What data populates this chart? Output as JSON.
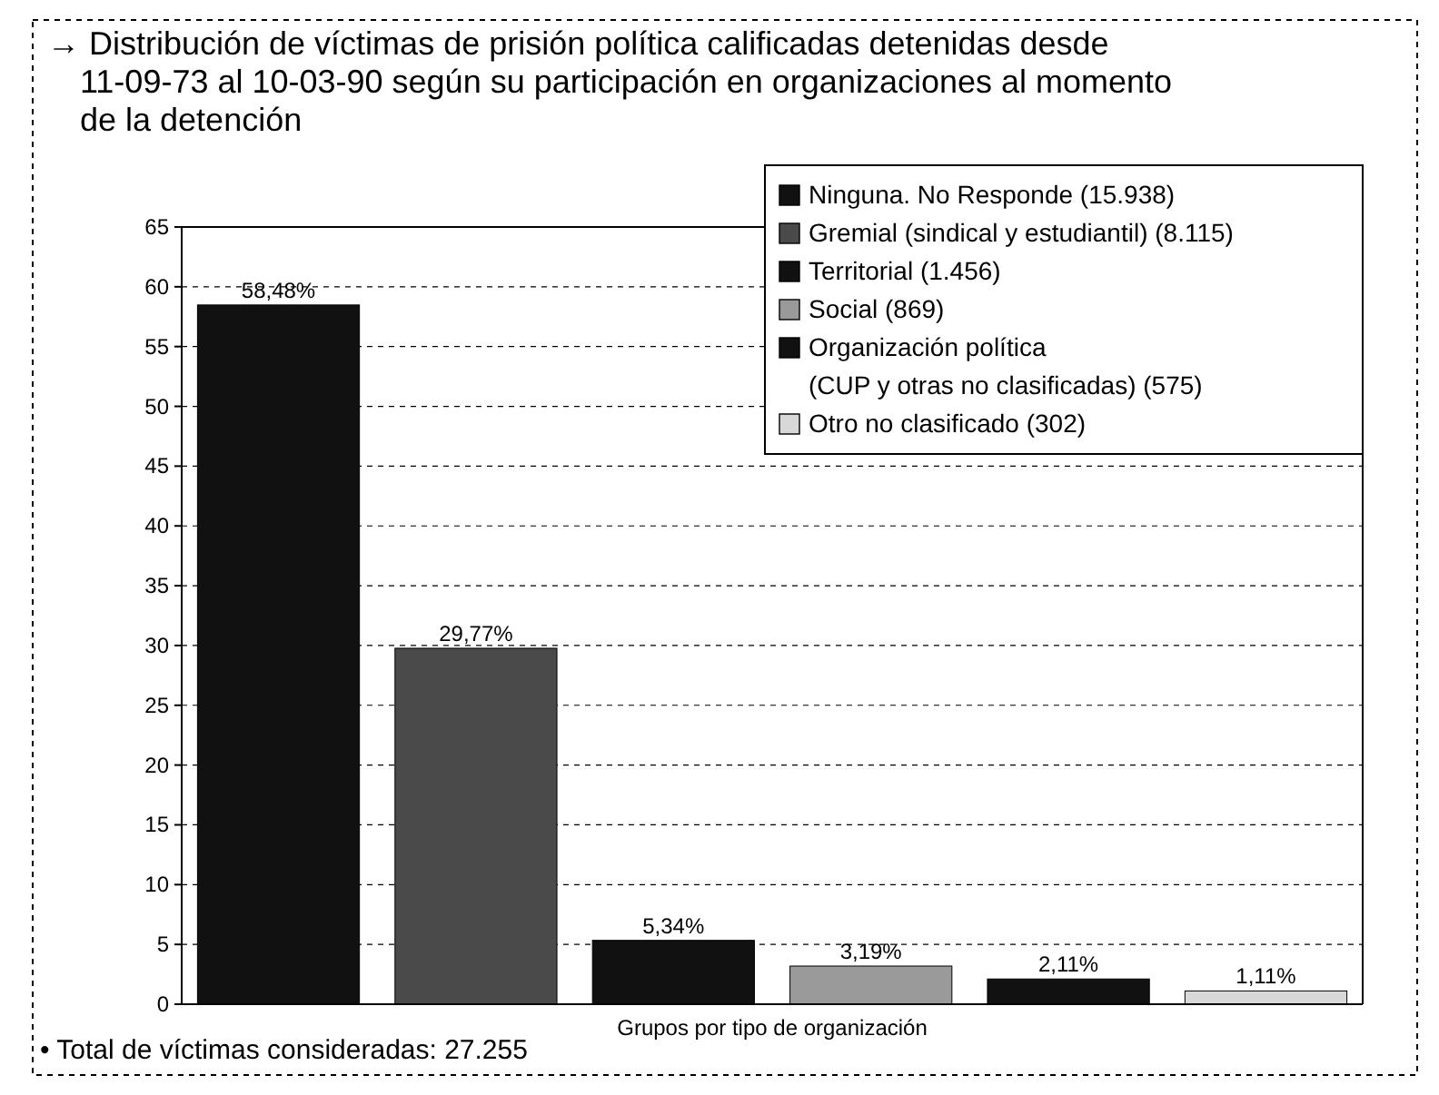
{
  "chart_data": {
    "type": "bar",
    "title": "→ Distribución de víctimas de prisión política calificadas detenidas desde\n11-09-73 al 10-03-90 según su participación en organizaciones al momento\nde la detención",
    "xlabel": "Grupos por tipo de organización",
    "categories": [
      null,
      null,
      null,
      null,
      null,
      null
    ],
    "series": [
      {
        "name": "Ninguna. No Responde (15.938)",
        "color": "#111111",
        "values": [
          58.48,
          null,
          null,
          null,
          null,
          null
        ],
        "value_labels": [
          "58,48%",
          null,
          null,
          null,
          null,
          null
        ]
      },
      {
        "name": "Gremial (sindical y estudiantil) (8.115)",
        "color": "#4a4a4a",
        "values": [
          null,
          29.77,
          null,
          null,
          null,
          null
        ],
        "value_labels": [
          null,
          "29,77%",
          null,
          null,
          null,
          null
        ]
      },
      {
        "name": "Territorial (1.456)",
        "color": "#111111",
        "values": [
          null,
          null,
          5.34,
          null,
          null,
          null
        ],
        "value_labels": [
          null,
          null,
          "5,34%",
          null,
          null,
          null
        ]
      },
      {
        "name": "Social (869)",
        "color": "#9a9a9a",
        "values": [
          null,
          null,
          null,
          3.19,
          null,
          null
        ],
        "value_labels": [
          null,
          null,
          null,
          "3,19%",
          null,
          null
        ]
      },
      {
        "name": "Organización política\n(CUP y otras no clasificadas) (575)",
        "color": "#111111",
        "values": [
          null,
          null,
          null,
          null,
          2.11,
          null
        ],
        "value_labels": [
          null,
          null,
          null,
          null,
          "2,11%",
          null
        ]
      },
      {
        "name": "Otro no clasificado (302)",
        "color": "#d8d8d8",
        "values": [
          null,
          null,
          null,
          null,
          null,
          1.11
        ],
        "value_labels": [
          null,
          null,
          null,
          null,
          null,
          "1,11%"
        ]
      }
    ],
    "ylim": [
      0,
      65
    ],
    "yticks": [
      0,
      5,
      10,
      15,
      20,
      25,
      30,
      35,
      40,
      45,
      50,
      55,
      60,
      65
    ],
    "grid": "y",
    "legend": "top right",
    "tick_labels": "y",
    "annotations": [
      "• Total de víctimas consideradas: 27.255"
    ]
  }
}
